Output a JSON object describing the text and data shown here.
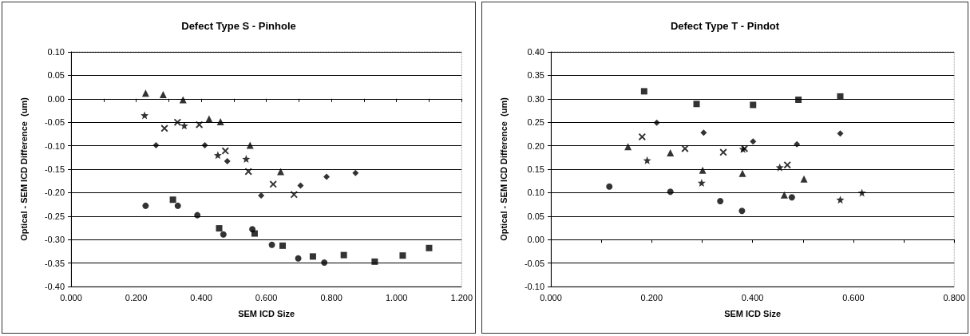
{
  "chart_data": [
    {
      "type": "scatter",
      "title": "Defect Type S - Pinhole",
      "xlabel": "SEM ICD Size",
      "ylabel": "Optical - SEM ICD Difference  (um)",
      "grid": "y",
      "xlim": [
        0,
        1.2
      ],
      "xticks": [
        {
          "value": 0,
          "label": "0.000"
        },
        {
          "value": 0.1,
          "label": null
        },
        {
          "value": 0.2,
          "label": "0.200"
        },
        {
          "value": 0.3,
          "label": null
        },
        {
          "value": 0.4,
          "label": "0.400"
        },
        {
          "value": 0.5,
          "label": null
        },
        {
          "value": 0.6,
          "label": "0.600"
        },
        {
          "value": 0.7,
          "label": null
        },
        {
          "value": 0.8,
          "label": "0.800"
        },
        {
          "value": 0.9,
          "label": null
        },
        {
          "value": 1.0,
          "label": "1.000"
        },
        {
          "value": 1.1,
          "label": null
        },
        {
          "value": 1.2,
          "label": "1.200"
        }
      ],
      "ylim": [
        -0.4,
        0.1
      ],
      "yticks": [
        {
          "value": -0.4,
          "label": "-0.40"
        },
        {
          "value": -0.35,
          "label": "-0.35"
        },
        {
          "value": -0.3,
          "label": "-0.30"
        },
        {
          "value": -0.25,
          "label": "-0.25"
        },
        {
          "value": -0.2,
          "label": "-0.20"
        },
        {
          "value": -0.15,
          "label": "-0.15"
        },
        {
          "value": -0.1,
          "label": "-0.10"
        },
        {
          "value": -0.05,
          "label": "-0.05"
        },
        {
          "value": 0,
          "label": "0.00"
        },
        {
          "value": 0.05,
          "label": "0.05"
        },
        {
          "value": 0.1,
          "label": "0.10"
        }
      ],
      "series": [
        {
          "color": "#000000",
          "marker": "diamond",
          "x": [
            0.261,
            0.411,
            0.48,
            0.584,
            0.705,
            0.785,
            0.874
          ],
          "values": [
            -0.099,
            -0.099,
            -0.133,
            -0.206,
            -0.185,
            -0.166,
            -0.158
          ]
        },
        {
          "color": "#000000",
          "marker": "square",
          "x": [
            0.313,
            0.455,
            0.564,
            0.65,
            0.743,
            0.838,
            0.933,
            1.019,
            1.1
          ],
          "values": [
            -0.215,
            -0.276,
            -0.287,
            -0.313,
            -0.336,
            -0.333,
            -0.347,
            -0.334,
            -0.318
          ]
        },
        {
          "color": "#000000",
          "marker": "triangle",
          "x": [
            0.229,
            0.283,
            0.344,
            0.424,
            0.459,
            0.55,
            0.644
          ],
          "values": [
            0.012,
            0.009,
            -0.002,
            -0.043,
            -0.049,
            -0.099,
            -0.155
          ]
        },
        {
          "color": "#000000",
          "marker": "cross",
          "x": [
            0.287,
            0.327,
            0.394,
            0.474,
            0.545,
            0.621,
            0.685
          ],
          "values": [
            -0.063,
            -0.05,
            -0.055,
            -0.111,
            -0.155,
            -0.182,
            -0.204
          ]
        },
        {
          "color": "#000000",
          "marker": "star",
          "x": [
            0.226,
            0.348,
            0.451,
            0.538
          ],
          "values": [
            -0.035,
            -0.057,
            -0.12,
            -0.128
          ]
        },
        {
          "color": "#000000",
          "marker": "circle",
          "x": [
            0.229,
            0.328,
            0.388,
            0.468,
            0.557,
            0.617,
            0.698,
            0.778
          ],
          "values": [
            -0.228,
            -0.228,
            -0.248,
            -0.289,
            -0.278,
            -0.311,
            -0.34,
            -0.349
          ]
        }
      ]
    },
    {
      "type": "scatter",
      "title": "Defect Type T - Pindot",
      "xlabel": "SEM ICD Size",
      "ylabel": "Optical - SEM ICD Difference  (um)",
      "grid": "y",
      "xlim": [
        0,
        0.8
      ],
      "xticks": [
        {
          "value": 0,
          "label": "0.000"
        },
        {
          "value": 0.1,
          "label": null
        },
        {
          "value": 0.2,
          "label": "0.200"
        },
        {
          "value": 0.3,
          "label": null
        },
        {
          "value": 0.4,
          "label": "0.400"
        },
        {
          "value": 0.5,
          "label": null
        },
        {
          "value": 0.6,
          "label": "0.600"
        },
        {
          "value": 0.7,
          "label": null
        },
        {
          "value": 0.8,
          "label": "0.800"
        }
      ],
      "ylim": [
        -0.1,
        0.4
      ],
      "yticks": [
        {
          "value": -0.1,
          "label": "-0.10"
        },
        {
          "value": -0.05,
          "label": "-0.05"
        },
        {
          "value": 0,
          "label": "0.00"
        },
        {
          "value": 0.05,
          "label": "0.05"
        },
        {
          "value": 0.1,
          "label": "0.10"
        },
        {
          "value": 0.15,
          "label": "0.15"
        },
        {
          "value": 0.2,
          "label": "0.20"
        },
        {
          "value": 0.25,
          "label": "0.25"
        },
        {
          "value": 0.3,
          "label": "0.30"
        },
        {
          "value": 0.35,
          "label": "0.35"
        },
        {
          "value": 0.4,
          "label": "0.40"
        }
      ],
      "series": [
        {
          "color": "#000000",
          "marker": "diamond",
          "x": [
            0.21,
            0.303,
            0.401,
            0.488,
            0.574
          ],
          "values": [
            0.249,
            0.228,
            0.209,
            0.203,
            0.226
          ]
        },
        {
          "color": "#000000",
          "marker": "square",
          "x": [
            0.185,
            0.289,
            0.401,
            0.491,
            0.574
          ],
          "values": [
            0.316,
            0.289,
            0.287,
            0.298,
            0.305
          ]
        },
        {
          "color": "#000000",
          "marker": "triangle",
          "x": [
            0.153,
            0.237,
            0.301,
            0.38,
            0.463,
            0.502
          ],
          "values": [
            0.198,
            0.185,
            0.148,
            0.141,
            0.095,
            0.129
          ]
        },
        {
          "color": "#000000",
          "marker": "cross",
          "x": [
            0.181,
            0.266,
            0.342,
            0.384,
            0.469
          ],
          "values": [
            0.219,
            0.194,
            0.186,
            0.194,
            0.159
          ]
        },
        {
          "color": "#000000",
          "marker": "star",
          "x": [
            0.191,
            0.299,
            0.381,
            0.454,
            0.574,
            0.617
          ],
          "values": [
            0.169,
            0.121,
            0.193,
            0.154,
            0.085,
            0.1
          ]
        },
        {
          "color": "#000000",
          "marker": "circle",
          "x": [
            0.116,
            0.237,
            0.336,
            0.379,
            0.478
          ],
          "values": [
            0.113,
            0.102,
            0.082,
            0.061,
            0.09
          ]
        }
      ]
    }
  ]
}
